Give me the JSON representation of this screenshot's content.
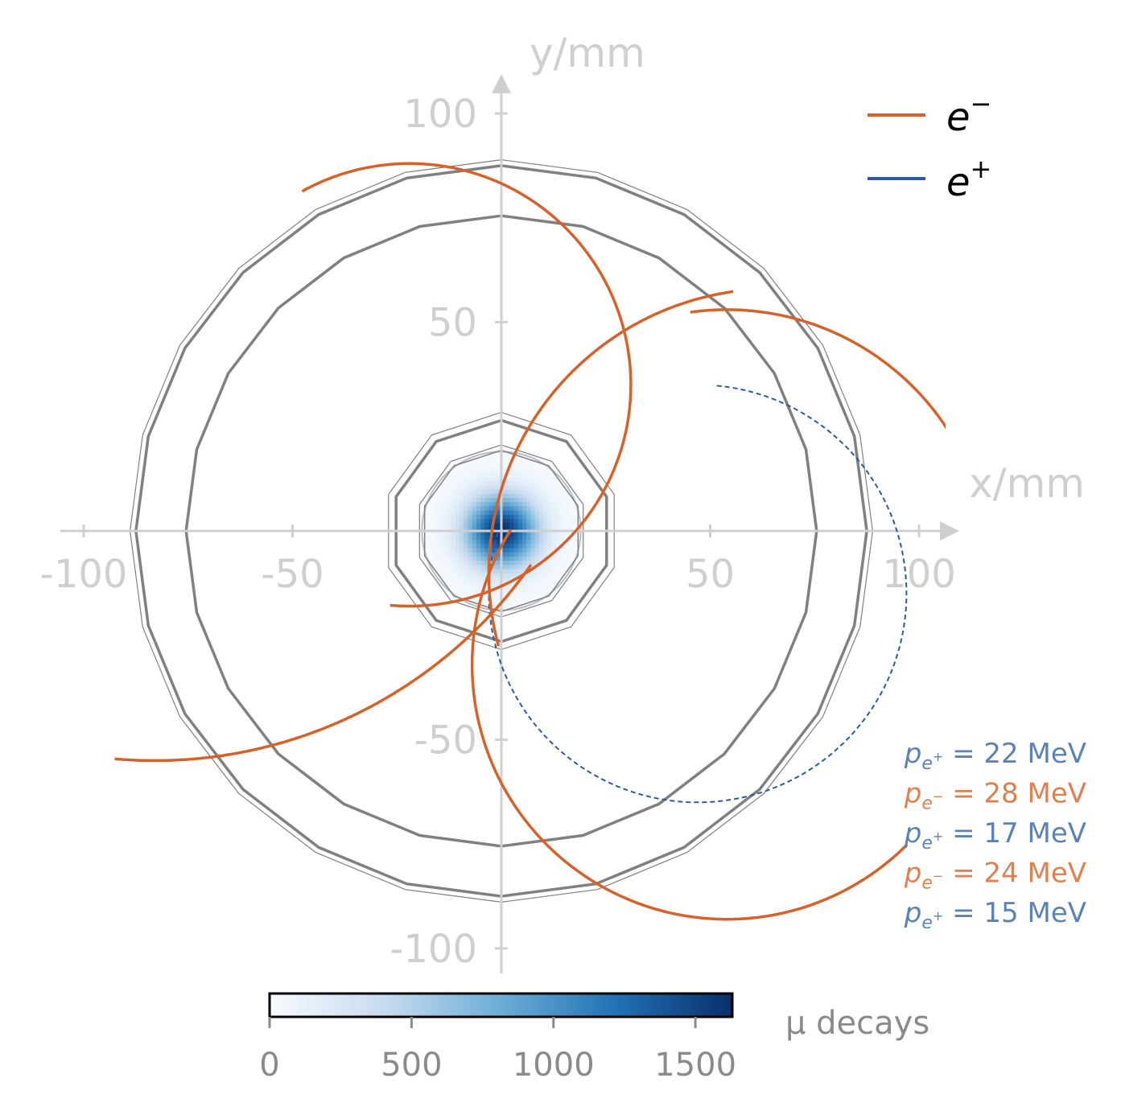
{
  "colors": {
    "electron": "#d6622a",
    "positron": "#2c5aa0",
    "positron_label": "#5b82b6",
    "electron_label": "#e0804f",
    "axis": "#cfcfcf",
    "detector": "#808080",
    "colorbar_axis": "#8a8a8a"
  },
  "chart_data": {
    "type": "scatter",
    "xlabel": "x/mm",
    "ylabel": "y/mm",
    "xlim": [
      -105,
      105
    ],
    "ylim": [
      -105,
      105
    ],
    "xticks": [
      -100,
      -50,
      50,
      100
    ],
    "yticks": [
      100,
      50,
      -50,
      -100
    ],
    "xtick_labels": [
      "-100",
      "-50",
      "50",
      "100"
    ],
    "ytick_labels": [
      "100",
      "50",
      "-50",
      "-100"
    ],
    "grid": false,
    "legend_position": "top-right",
    "legend": [
      {
        "label": "e",
        "sup": "−",
        "color": "#d6622a"
      },
      {
        "label": "e",
        "sup": "+",
        "color": "#2c5aa0"
      }
    ],
    "detector_layers_radius_mm": [
      19.5,
      26,
      31,
      80,
      92
    ],
    "target_radius_mm": 19,
    "tracks": [
      {
        "charge": "+",
        "center": [
          47,
          -15
        ],
        "radius": 50,
        "style": "dashed",
        "momentum_MeV": 22
      },
      {
        "charge": "-",
        "center": [
          -22,
          35
        ],
        "radius": 53,
        "style": "solid",
        "momentum_MeV": 28
      },
      {
        "charge": "-",
        "center": [
          55,
          -10
        ],
        "radius": 65,
        "style": "solid",
        "momentum_MeV": 24
      },
      {
        "charge": "-",
        "center": [
          78,
          -95
        ],
        "radius": 95,
        "style": "solid"
      },
      {
        "charge": "+",
        "center": [
          -60,
          35
        ],
        "radius": 0,
        "style": "hidden",
        "momentum_MeV": 17
      },
      {
        "charge": "+",
        "center": [
          -60,
          35
        ],
        "radius": 0,
        "style": "hidden",
        "momentum_MeV": 15
      }
    ],
    "momentum_labels": [
      {
        "particle": "e",
        "sup": "+",
        "value": "= 22 MeV",
        "color": "#5b82b6"
      },
      {
        "particle": "e",
        "sup": "−",
        "value": "= 28 MeV",
        "color": "#e0804f"
      },
      {
        "particle": "e",
        "sup": "+",
        "value": "= 17 MeV",
        "color": "#5b82b6"
      },
      {
        "particle": "e",
        "sup": "−",
        "value": "= 24 MeV",
        "color": "#e0804f"
      },
      {
        "particle": "e",
        "sup": "+",
        "value": "= 15 MeV",
        "color": "#5b82b6"
      }
    ],
    "heatmap": {
      "peak_value": 1620,
      "sigma_mm": 6,
      "extent_mm": 20
    },
    "colorbar": {
      "title": "μ decays",
      "min": 0,
      "max": 1630,
      "ticks": [
        0,
        500,
        1000,
        1500
      ],
      "tick_labels": [
        "0",
        "500",
        "1000",
        "1500"
      ],
      "colormap": "Blues"
    }
  }
}
